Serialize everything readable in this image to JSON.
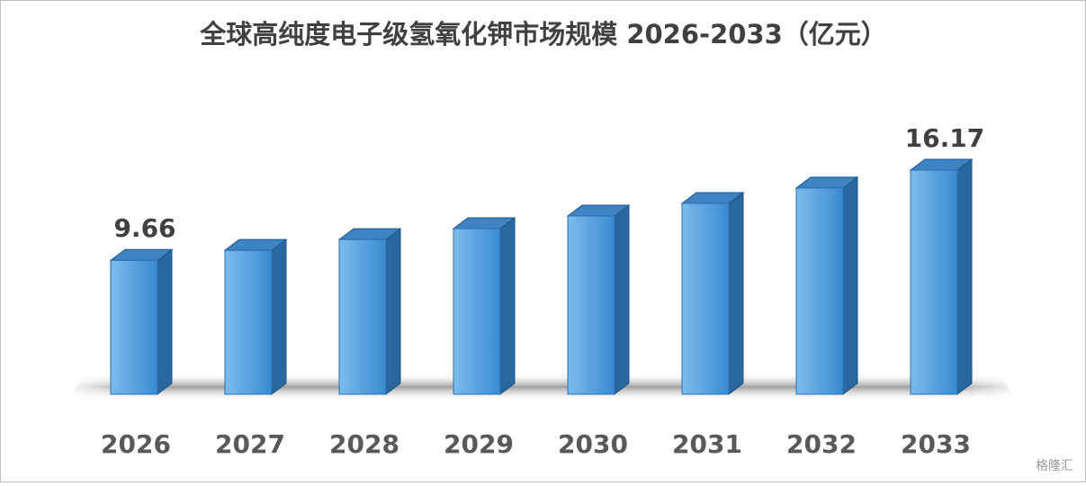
{
  "chart_data": {
    "type": "bar3d",
    "title": "全球高纯度电子级氢氧化钾市场规模 2026-2033（亿元）",
    "categories": [
      "2026",
      "2027",
      "2028",
      "2029",
      "2030",
      "2031",
      "2032",
      "2033"
    ],
    "values": [
      9.66,
      10.38,
      11.16,
      11.95,
      12.86,
      13.77,
      14.88,
      16.17
    ],
    "value_labels": [
      "9.66",
      null,
      null,
      null,
      null,
      null,
      null,
      "16.17"
    ],
    "color": "#3d92d8",
    "watermark": "格隆汇"
  }
}
